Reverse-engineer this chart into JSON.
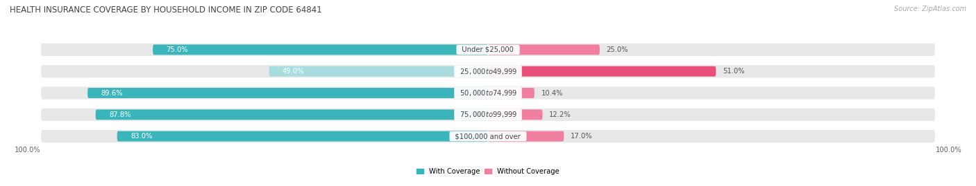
{
  "title": "HEALTH INSURANCE COVERAGE BY HOUSEHOLD INCOME IN ZIP CODE 64841",
  "source": "Source: ZipAtlas.com",
  "categories": [
    "Under $25,000",
    "$25,000 to $49,999",
    "$50,000 to $74,999",
    "$75,000 to $99,999",
    "$100,000 and over"
  ],
  "with_coverage": [
    75.0,
    49.0,
    89.6,
    87.8,
    83.0
  ],
  "without_coverage": [
    25.0,
    51.0,
    10.4,
    12.2,
    17.0
  ],
  "color_with": "#3ab5bb",
  "color_without": "#f07fa0",
  "color_with_light": "#a8dde0",
  "color_bg_bar": "#e8e8e8",
  "figsize": [
    14.06,
    2.69
  ],
  "dpi": 100,
  "title_fontsize": 8.5,
  "label_fontsize": 7.2,
  "source_fontsize": 7.0,
  "bottom_labels": [
    "100.0%",
    "100.0%"
  ],
  "legend_labels": [
    "With Coverage",
    "Without Coverage"
  ]
}
